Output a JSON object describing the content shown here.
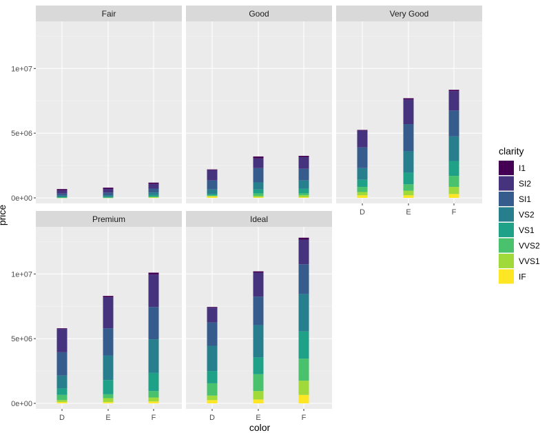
{
  "chart_data": {
    "type": "bar",
    "stacked": true,
    "faceted": true,
    "xlabel": "color",
    "ylabel": "price",
    "ylim": [
      0,
      13000000
    ],
    "yticks": [
      0,
      5000000,
      10000000
    ],
    "ytick_labels": [
      "0e+00",
      "5e+06",
      "1e+07"
    ],
    "categories": [
      "D",
      "E",
      "F"
    ],
    "legend": {
      "title": "clarity",
      "position": "right",
      "items": [
        "I1",
        "SI2",
        "SI1",
        "VS2",
        "VS1",
        "VVS2",
        "VVS1",
        "IF"
      ]
    },
    "colors": {
      "I1": "#440154",
      "SI2": "#46337E",
      "SI1": "#365C8D",
      "VS2": "#277F8E",
      "VS1": "#1FA187",
      "VVS2": "#4AC16D",
      "VVS1": "#9FDA3A",
      "IF": "#FDE725"
    },
    "grid": true,
    "panels": [
      {
        "title": "Fair",
        "series": {
          "I1": [
            100000,
            100000,
            100000
          ],
          "SI2": [
            250000,
            280000,
            360000
          ],
          "SI1": [
            150000,
            200000,
            300000
          ],
          "VS2": [
            100000,
            120000,
            200000
          ],
          "VS1": [
            50000,
            60000,
            110000
          ],
          "VVS2": [
            20000,
            20000,
            60000
          ],
          "VVS1": [
            10000,
            10000,
            30000
          ],
          "IF": [
            0,
            0,
            20000
          ]
        }
      },
      {
        "title": "Good",
        "series": {
          "I1": [
            50000,
            150000,
            100000
          ],
          "SI2": [
            800000,
            750000,
            900000
          ],
          "SI1": [
            700000,
            1100000,
            900000
          ],
          "VS2": [
            350000,
            550000,
            650000
          ],
          "VS1": [
            100000,
            300000,
            350000
          ],
          "VVS2": [
            50000,
            200000,
            150000
          ],
          "VVS1": [
            50000,
            100000,
            150000
          ],
          "IF": [
            100000,
            50000,
            50000
          ]
        }
      },
      {
        "title": "Very Good",
        "series": {
          "I1": [
            50000,
            100000,
            100000
          ],
          "SI2": [
            1300000,
            1900000,
            1500000
          ],
          "SI1": [
            1600000,
            2100000,
            2000000
          ],
          "VS2": [
            900000,
            1650000,
            1900000
          ],
          "VS1": [
            550000,
            900000,
            1150000
          ],
          "VVS2": [
            400000,
            500000,
            850000
          ],
          "VVS1": [
            250000,
            350000,
            550000
          ],
          "IF": [
            200000,
            200000,
            300000
          ]
        }
      },
      {
        "title": "Premium",
        "series": {
          "I1": [
            50000,
            100000,
            150000
          ],
          "SI2": [
            1800000,
            2400000,
            2500000
          ],
          "SI1": [
            1800000,
            2100000,
            2500000
          ],
          "VS2": [
            1000000,
            1900000,
            2600000
          ],
          "VS1": [
            500000,
            1100000,
            1400000
          ],
          "VVS2": [
            400000,
            300000,
            500000
          ],
          "VVS1": [
            150000,
            300000,
            300000
          ],
          "IF": [
            100000,
            100000,
            150000
          ]
        }
      },
      {
        "title": "Ideal",
        "series": {
          "I1": [
            50000,
            100000,
            150000
          ],
          "SI2": [
            1150000,
            1850000,
            1900000
          ],
          "SI1": [
            1800000,
            2200000,
            2300000
          ],
          "VS2": [
            1950000,
            2500000,
            2900000
          ],
          "VS1": [
            950000,
            1300000,
            2100000
          ],
          "VVS2": [
            950000,
            1300000,
            1700000
          ],
          "VVS1": [
            350000,
            650000,
            1100000
          ],
          "IF": [
            250000,
            300000,
            650000
          ]
        }
      }
    ]
  }
}
